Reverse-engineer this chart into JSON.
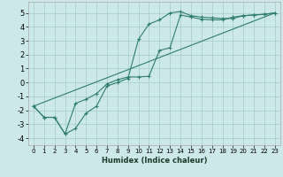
{
  "xlabel": "Humidex (Indice chaleur)",
  "bg_color": "#cce8e8",
  "grid_color": "#aacece",
  "line_color": "#2e7d6e",
  "xlim": [
    -0.5,
    23.5
  ],
  "ylim": [
    -4.5,
    5.8
  ],
  "yticks": [
    -4,
    -3,
    -2,
    -1,
    0,
    1,
    2,
    3,
    4,
    5
  ],
  "xticks": [
    0,
    1,
    2,
    3,
    4,
    5,
    6,
    7,
    8,
    9,
    10,
    11,
    12,
    13,
    14,
    15,
    16,
    17,
    18,
    19,
    20,
    21,
    22,
    23
  ],
  "line1_x": [
    0,
    1,
    2,
    3,
    4,
    5,
    6,
    7,
    8,
    9,
    10,
    11,
    12,
    13,
    14,
    15,
    16,
    17,
    18,
    19,
    20,
    21,
    22,
    23
  ],
  "line1_y": [
    -1.7,
    -2.5,
    -2.5,
    -3.7,
    -3.3,
    -2.2,
    -1.7,
    -0.25,
    0.0,
    0.3,
    3.1,
    4.2,
    4.5,
    5.0,
    5.1,
    4.8,
    4.7,
    4.65,
    4.6,
    4.6,
    4.8,
    4.85,
    4.9,
    5.0
  ],
  "line2_x": [
    0,
    1,
    2,
    3,
    4,
    5,
    6,
    7,
    8,
    9,
    10,
    11,
    12,
    13,
    14,
    15,
    16,
    17,
    18,
    19,
    20,
    21,
    22,
    23
  ],
  "line2_y": [
    -1.7,
    -2.5,
    -2.5,
    -3.7,
    -1.5,
    -1.2,
    -0.8,
    -0.1,
    0.2,
    0.4,
    0.4,
    0.45,
    2.3,
    2.5,
    4.85,
    4.7,
    4.55,
    4.5,
    4.5,
    4.7,
    4.8,
    4.85,
    4.9,
    5.0
  ],
  "line3_x": [
    0,
    23
  ],
  "line3_y": [
    -1.7,
    5.0
  ],
  "xlabel_fontsize": 6,
  "tick_fontsize_x": 5,
  "tick_fontsize_y": 6
}
